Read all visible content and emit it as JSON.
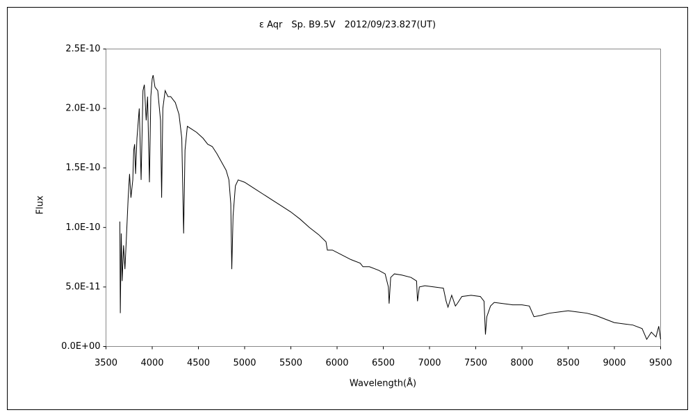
{
  "chart_data": {
    "type": "line",
    "title": "ε Aqr　Sp. B9.5V　2012/09/23.827(UT)",
    "x_label": "Wavelength(Å)",
    "y_label": "Flux",
    "color": "#000000",
    "xlim": [
      3500,
      9500
    ],
    "xticks": [
      3500,
      4000,
      4500,
      5000,
      5500,
      6000,
      6500,
      7000,
      7500,
      8000,
      8500,
      9000,
      9500
    ],
    "ylim": [
      0,
      2.5e-10
    ],
    "yticks": [
      {
        "value": 0,
        "label": "0.0E+00"
      },
      {
        "value": 5e-11,
        "label": "5.0E-11"
      },
      {
        "value": 1e-10,
        "label": "1.0E-10"
      },
      {
        "value": 1.5e-10,
        "label": "1.5E-10"
      },
      {
        "value": 2e-10,
        "label": "2.0E-10"
      },
      {
        "value": 2.5e-10,
        "label": "2.5E-10"
      }
    ],
    "x": [
      3650,
      3655,
      3665,
      3675,
      3690,
      3705,
      3720,
      3740,
      3755,
      3770,
      3790,
      3800,
      3810,
      3820,
      3835,
      3860,
      3880,
      3900,
      3915,
      3935,
      3950,
      3970,
      3985,
      4000,
      4010,
      4030,
      4060,
      4090,
      4102,
      4115,
      4140,
      4170,
      4200,
      4250,
      4290,
      4320,
      4340,
      4355,
      4380,
      4420,
      4480,
      4550,
      4600,
      4650,
      4700,
      4750,
      4800,
      4830,
      4850,
      4861,
      4875,
      4900,
      4930,
      5000,
      5100,
      5200,
      5300,
      5400,
      5500,
      5600,
      5700,
      5800,
      5880,
      5895,
      5950,
      6050,
      6150,
      6250,
      6280,
      6350,
      6450,
      6520,
      6555,
      6563,
      6580,
      6620,
      6700,
      6800,
      6860,
      6870,
      6890,
      6950,
      7050,
      7150,
      7180,
      7200,
      7240,
      7280,
      7300,
      7350,
      7450,
      7550,
      7590,
      7605,
      7620,
      7660,
      7700,
      7800,
      7900,
      8000,
      8080,
      8130,
      8200,
      8300,
      8400,
      8500,
      8600,
      8700,
      8800,
      8900,
      9000,
      9100,
      9200,
      9300,
      9350,
      9400,
      9450,
      9480,
      9500
    ],
    "values": [
      1.05e-10,
      2.8e-11,
      9.5e-11,
      5.5e-11,
      8.5e-11,
      6.5e-11,
      9e-11,
      1.25e-10,
      1.45e-10,
      1.25e-10,
      1.4e-10,
      1.65e-10,
      1.7e-10,
      1.45e-10,
      1.75e-10,
      2e-10,
      1.4e-10,
      2.15e-10,
      2.2e-10,
      1.9e-10,
      2.1e-10,
      1.38e-10,
      2.1e-10,
      2.25e-10,
      2.28e-10,
      2.18e-10,
      2.15e-10,
      1.9e-10,
      1.25e-10,
      2e-10,
      2.15e-10,
      2.1e-10,
      2.1e-10,
      2.05e-10,
      1.95e-10,
      1.75e-10,
      9.5e-11,
      1.65e-10,
      1.85e-10,
      1.83e-10,
      1.8e-10,
      1.75e-10,
      1.7e-10,
      1.68e-10,
      1.62e-10,
      1.55e-10,
      1.48e-10,
      1.4e-10,
      1.2e-10,
      6.5e-11,
      1.1e-10,
      1.35e-10,
      1.4e-10,
      1.38e-10,
      1.33e-10,
      1.28e-10,
      1.23e-10,
      1.18e-10,
      1.13e-10,
      1.07e-10,
      1e-10,
      9.4e-11,
      8.8e-11,
      8.1e-11,
      8.1e-11,
      7.7e-11,
      7.3e-11,
      7e-11,
      6.7e-11,
      6.7e-11,
      6.4e-11,
      6.1e-11,
      5e-11,
      3.6e-11,
      5.8e-11,
      6.1e-11,
      6e-11,
      5.8e-11,
      5.5e-11,
      3.8e-11,
      5e-11,
      5.1e-11,
      5e-11,
      4.9e-11,
      3.8e-11,
      3.3e-11,
      4.3e-11,
      3.4e-11,
      3.6e-11,
      4.2e-11,
      4.3e-11,
      4.2e-11,
      3.8e-11,
      1e-11,
      2.5e-11,
      3.4e-11,
      3.7e-11,
      3.6e-11,
      3.5e-11,
      3.5e-11,
      3.4e-11,
      2.5e-11,
      2.6e-11,
      2.8e-11,
      2.9e-11,
      3e-11,
      2.9e-11,
      2.8e-11,
      2.6e-11,
      2.3e-11,
      2e-11,
      1.9e-11,
      1.8e-11,
      1.5e-11,
      6e-12,
      1.2e-11,
      8e-12,
      1.7e-11,
      6e-12
    ]
  }
}
